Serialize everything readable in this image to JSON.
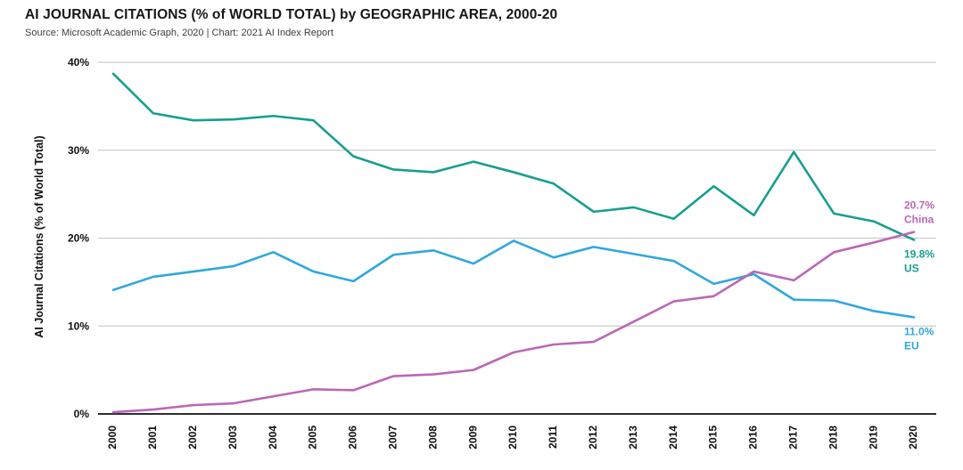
{
  "chart_data": {
    "type": "line",
    "title": "AI JOURNAL CITATIONS (% of WORLD TOTAL) by GEOGRAPHIC AREA, 2000-20",
    "source": "Source: Microsoft Academic Graph, 2020 | Chart: 2021 AI Index Report",
    "ylabel": "AI Journal Citations (% of World Total)",
    "xlabel": "",
    "x": [
      2000,
      2001,
      2002,
      2003,
      2004,
      2005,
      2006,
      2007,
      2008,
      2009,
      2010,
      2011,
      2012,
      2013,
      2014,
      2015,
      2016,
      2017,
      2018,
      2019,
      2020
    ],
    "ylim": [
      0,
      40
    ],
    "yticks": [
      0,
      10,
      20,
      30,
      40
    ],
    "ytick_labels": [
      "0%",
      "10%",
      "20%",
      "30%",
      "40%"
    ],
    "grid": "horizontal",
    "legend": "end-of-line-labels",
    "colors": {
      "us": "#189e90",
      "eu": "#2fa8dc",
      "china": "#bb67b6",
      "gridline": "#cccccc",
      "axis": "#111111"
    },
    "series": [
      {
        "name": "US",
        "color": "#189e90",
        "values": [
          38.7,
          34.2,
          33.4,
          33.5,
          33.9,
          33.4,
          29.3,
          27.8,
          27.5,
          28.7,
          27.5,
          26.2,
          23.0,
          23.5,
          22.2,
          25.9,
          22.6,
          29.8,
          22.8,
          21.9,
          19.8
        ]
      },
      {
        "name": "EU",
        "color": "#2fa8dc",
        "values": [
          14.1,
          15.6,
          16.2,
          16.8,
          18.4,
          16.2,
          15.1,
          18.1,
          18.6,
          17.1,
          19.7,
          17.8,
          19.0,
          18.2,
          17.4,
          14.8,
          15.9,
          13.0,
          12.9,
          11.7,
          11.0
        ]
      },
      {
        "name": "China",
        "color": "#bb67b6",
        "values": [
          0.2,
          0.5,
          1.0,
          1.2,
          2.0,
          2.8,
          2.7,
          4.3,
          4.5,
          5.0,
          7.0,
          7.9,
          8.2,
          10.5,
          12.8,
          13.4,
          16.2,
          15.2,
          18.4,
          19.5,
          20.7
        ]
      }
    ],
    "annotations": [
      {
        "value": "20.7%",
        "name": "China",
        "series": "China",
        "color": "#bb67b6",
        "placement": "above"
      },
      {
        "value": "19.8%",
        "name": "US",
        "series": "US",
        "color": "#189e90",
        "placement": "below"
      },
      {
        "value": "11.0%",
        "name": "EU",
        "series": "EU",
        "color": "#2fa8dc",
        "placement": "below"
      }
    ]
  }
}
